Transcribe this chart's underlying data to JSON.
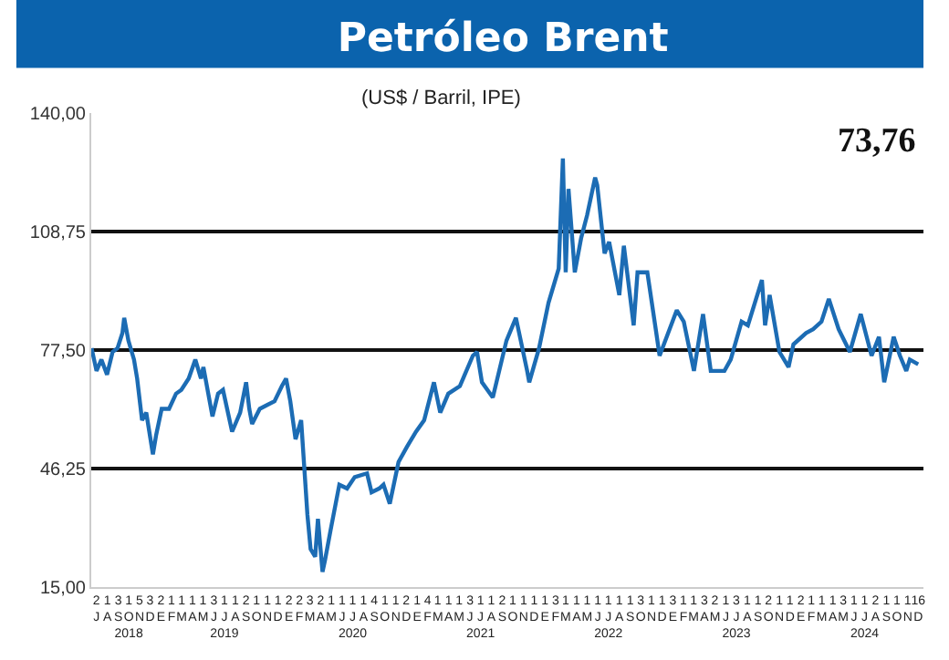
{
  "chart_data": {
    "type": "line",
    "title": "Petróleo Brent",
    "subtitle": "(US$ / Barril, IPE)",
    "annotations": [
      "73,76"
    ],
    "x": [
      "2018-07-02",
      "2018-07-16",
      "2018-07-30",
      "2018-08-15",
      "2018-08-31",
      "2018-09-14",
      "2018-09-28",
      "2018-10-03",
      "2018-10-15",
      "2018-10-31",
      "2018-11-09",
      "2018-11-23",
      "2018-12-05",
      "2018-12-24",
      "2019-01-02",
      "2019-01-18",
      "2019-02-08",
      "2019-02-28",
      "2019-03-15",
      "2019-04-05",
      "2019-04-24",
      "2019-05-10",
      "2019-05-17",
      "2019-06-12",
      "2019-06-28",
      "2019-07-12",
      "2019-08-07",
      "2019-08-30",
      "2019-09-16",
      "2019-09-25",
      "2019-10-03",
      "2019-10-25",
      "2019-11-15",
      "2019-12-06",
      "2019-12-27",
      "2020-01-08",
      "2020-01-20",
      "2020-02-04",
      "2020-02-20",
      "2020-03-09",
      "2020-03-18",
      "2020-03-31",
      "2020-04-08",
      "2020-04-21",
      "2020-04-28",
      "2020-05-14",
      "2020-06-08",
      "2020-06-30",
      "2020-07-22",
      "2020-08-26",
      "2020-09-08",
      "2020-09-30",
      "2020-10-12",
      "2020-10-30",
      "2020-11-24",
      "2020-12-18",
      "2021-01-13",
      "2021-02-05",
      "2021-03-05",
      "2021-03-23",
      "2021-04-15",
      "2021-05-18",
      "2021-06-24",
      "2021-07-06",
      "2021-07-20",
      "2021-08-20",
      "2021-09-28",
      "2021-10-25",
      "2021-11-26",
      "2021-12-02",
      "2021-12-30",
      "2022-01-26",
      "2022-02-24",
      "2022-03-08",
      "2022-03-16",
      "2022-03-24",
      "2022-04-11",
      "2022-04-29",
      "2022-05-16",
      "2022-06-08",
      "2022-06-14",
      "2022-07-05",
      "2022-07-18",
      "2022-08-16",
      "2022-08-29",
      "2022-09-26",
      "2022-10-07",
      "2022-11-04",
      "2022-11-28",
      "2022-12-09",
      "2023-01-27",
      "2023-02-16",
      "2023-03-17",
      "2023-04-12",
      "2023-05-04",
      "2023-06-12",
      "2023-06-30",
      "2023-07-31",
      "2023-08-18",
      "2023-09-27",
      "2023-10-06",
      "2023-10-19",
      "2023-11-16",
      "2023-12-12",
      "2023-12-26",
      "2024-01-31",
      "2024-02-20",
      "2024-03-15",
      "2024-04-05",
      "2024-05-03",
      "2024-06-04",
      "2024-07-05",
      "2024-08-05",
      "2024-08-26",
      "2024-09-10",
      "2024-10-07",
      "2024-10-25",
      "2024-11-12",
      "2024-11-22",
      "2024-12-16"
    ],
    "series": [
      {
        "color": "#1c6cb4",
        "values": [
          78,
          72,
          75,
          71,
          77,
          78,
          82,
          86,
          80,
          75,
          70,
          59,
          61,
          50,
          55,
          62,
          62,
          66,
          67,
          70,
          75,
          70,
          73,
          60,
          66,
          67,
          56,
          61,
          69,
          62,
          58,
          62,
          63,
          64,
          68,
          70,
          64,
          54,
          59,
          34,
          25,
          23,
          33,
          19,
          22,
          30,
          42,
          41,
          44,
          45,
          40,
          41,
          42,
          37,
          48,
          52,
          56,
          59,
          69,
          61,
          66,
          68,
          76,
          77,
          69,
          65,
          80,
          86,
          72,
          69,
          78,
          90,
          99,
          128,
          98,
          120,
          98,
          107,
          113,
          123,
          121,
          103,
          106,
          92,
          105,
          84,
          98,
          98,
          83,
          76,
          88,
          85,
          72,
          87,
          72,
          72,
          75,
          85,
          84,
          96,
          84,
          92,
          77,
          73,
          79,
          82,
          83,
          85,
          91,
          83,
          77,
          87,
          76,
          81,
          69,
          81,
          76,
          72,
          75,
          73.76
        ]
      }
    ],
    "xlim": [
      "2018-07-01",
      "2024-12-31"
    ],
    "ylim": [
      15,
      140
    ],
    "yticks": [
      {
        "value": 15,
        "label": "15,00"
      },
      {
        "value": 46.25,
        "label": "46,25"
      },
      {
        "value": 77.5,
        "label": "77,50"
      },
      {
        "value": 108.75,
        "label": "108,75"
      },
      {
        "value": 140,
        "label": "140,00"
      }
    ],
    "xticks": [
      {
        "value": "2018-07-16",
        "label": "2\nJ"
      },
      {
        "value": "2018-08-16",
        "label": "1\nA"
      },
      {
        "value": "2018-09-16",
        "label": "3\nS"
      },
      {
        "value": "2018-10-16",
        "label": "1\nO\n2018"
      },
      {
        "value": "2018-11-16",
        "label": "5\nN"
      },
      {
        "value": "2018-12-16",
        "label": "3\nD"
      },
      {
        "value": "2019-01-16",
        "label": "2\nE"
      },
      {
        "value": "2019-02-15",
        "label": "1\nF"
      },
      {
        "value": "2019-03-16",
        "label": "1\nM"
      },
      {
        "value": "2019-04-16",
        "label": "1\nA"
      },
      {
        "value": "2019-05-16",
        "label": "1\nM"
      },
      {
        "value": "2019-06-16",
        "label": "3\nJ"
      },
      {
        "value": "2019-07-16",
        "label": "1\nJ\n2019"
      },
      {
        "value": "2019-08-16",
        "label": "1\nA"
      },
      {
        "value": "2019-09-16",
        "label": "2\nS"
      },
      {
        "value": "2019-10-16",
        "label": "1\nO"
      },
      {
        "value": "2019-11-16",
        "label": "1\nN"
      },
      {
        "value": "2019-12-16",
        "label": "1\nD"
      },
      {
        "value": "2020-01-16",
        "label": "2\nE"
      },
      {
        "value": "2020-02-15",
        "label": "2\nF"
      },
      {
        "value": "2020-03-16",
        "label": "3\nM"
      },
      {
        "value": "2020-04-16",
        "label": "2\nA"
      },
      {
        "value": "2020-05-16",
        "label": "1\nM"
      },
      {
        "value": "2020-06-16",
        "label": "1\nJ"
      },
      {
        "value": "2020-07-16",
        "label": "1\nJ\n2020"
      },
      {
        "value": "2020-08-16",
        "label": "1\nA"
      },
      {
        "value": "2020-09-16",
        "label": "4\nS"
      },
      {
        "value": "2020-10-16",
        "label": "1\nO"
      },
      {
        "value": "2020-11-16",
        "label": "1\nN"
      },
      {
        "value": "2020-12-16",
        "label": "2\nD"
      },
      {
        "value": "2021-01-16",
        "label": "1\nE"
      },
      {
        "value": "2021-02-15",
        "label": "4\nF"
      },
      {
        "value": "2021-03-16",
        "label": "1\nM"
      },
      {
        "value": "2021-04-16",
        "label": "1\nA"
      },
      {
        "value": "2021-05-16",
        "label": "1\nM"
      },
      {
        "value": "2021-06-16",
        "label": "3\nJ"
      },
      {
        "value": "2021-07-16",
        "label": "1\nJ\n2021"
      },
      {
        "value": "2021-08-16",
        "label": "1\nA"
      },
      {
        "value": "2021-09-16",
        "label": "2\nS"
      },
      {
        "value": "2021-10-16",
        "label": "1\nO"
      },
      {
        "value": "2021-11-16",
        "label": "1\nN"
      },
      {
        "value": "2021-12-16",
        "label": "1\nD"
      },
      {
        "value": "2022-01-16",
        "label": "1\nE"
      },
      {
        "value": "2022-02-15",
        "label": "3\nF"
      },
      {
        "value": "2022-03-16",
        "label": "1\nM"
      },
      {
        "value": "2022-04-16",
        "label": "1\nA"
      },
      {
        "value": "2022-05-16",
        "label": "1\nM"
      },
      {
        "value": "2022-06-16",
        "label": "1\nJ"
      },
      {
        "value": "2022-07-16",
        "label": "1\nJ\n2022"
      },
      {
        "value": "2022-08-16",
        "label": "1\nA"
      },
      {
        "value": "2022-09-16",
        "label": "1\nS"
      },
      {
        "value": "2022-10-16",
        "label": "3\nO"
      },
      {
        "value": "2022-11-16",
        "label": "1\nN"
      },
      {
        "value": "2022-12-16",
        "label": "1\nD"
      },
      {
        "value": "2023-01-16",
        "label": "3\nE"
      },
      {
        "value": "2023-02-15",
        "label": "1\nF"
      },
      {
        "value": "2023-03-16",
        "label": "1\nM"
      },
      {
        "value": "2023-04-16",
        "label": "3\nA"
      },
      {
        "value": "2023-05-16",
        "label": "2\nM"
      },
      {
        "value": "2023-06-16",
        "label": "1\nJ"
      },
      {
        "value": "2023-07-16",
        "label": "3\nJ\n2023"
      },
      {
        "value": "2023-08-16",
        "label": "1\nA"
      },
      {
        "value": "2023-09-16",
        "label": "1\nS"
      },
      {
        "value": "2023-10-16",
        "label": "2\nO"
      },
      {
        "value": "2023-11-16",
        "label": "1\nN"
      },
      {
        "value": "2023-12-16",
        "label": "1\nD"
      },
      {
        "value": "2024-01-16",
        "label": "2\nE"
      },
      {
        "value": "2024-02-15",
        "label": "1\nF"
      },
      {
        "value": "2024-03-16",
        "label": "1\nM"
      },
      {
        "value": "2024-04-16",
        "label": "1\nA"
      },
      {
        "value": "2024-05-16",
        "label": "3\nM"
      },
      {
        "value": "2024-06-16",
        "label": "1\nJ"
      },
      {
        "value": "2024-07-16",
        "label": "1\nJ\n2024"
      },
      {
        "value": "2024-08-16",
        "label": "2\nA"
      },
      {
        "value": "2024-09-16",
        "label": "1\nS"
      },
      {
        "value": "2024-10-16",
        "label": "1\nO"
      },
      {
        "value": "2024-11-16",
        "label": "1\nN"
      },
      {
        "value": "2024-12-16",
        "label": "16\nD"
      }
    ],
    "grid": "y",
    "line_style": "solid",
    "marker": "none"
  }
}
